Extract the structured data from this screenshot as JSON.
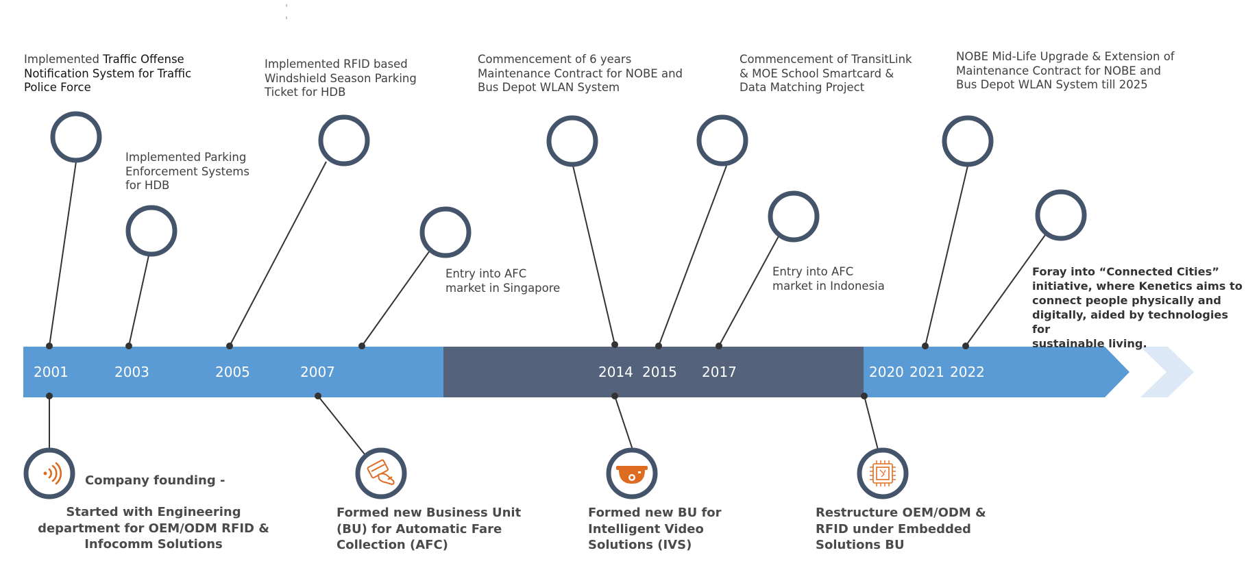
{
  "years": [
    "2001",
    "2003",
    "2005",
    "2007",
    "2014",
    "2015",
    "2017",
    "2020",
    "2021",
    "2022"
  ],
  "colors": {
    "band_light": "#5b9bd5",
    "band_dark": "#54627b",
    "circle_stroke": "#44546a",
    "ghost_chevron": "#dce8f5",
    "icon_orange": "#dd6b20"
  },
  "top_events": [
    {
      "prefix": "Implemented ",
      "lines": [
        "Traffic Offense",
        "Notification System for Traffic",
        "Police Force"
      ]
    },
    {
      "lines": [
        "Implemented Parking",
        "Enforcement Systems",
        "for HDB"
      ]
    },
    {
      "lines": [
        "Implemented RFID based",
        "Windshield Season Parking",
        "Ticket for HDB"
      ]
    },
    {
      "lines": [
        "Entry into AFC",
        "market in Singapore"
      ]
    },
    {
      "lines": [
        "Commencement of 6 years",
        "Maintenance Contract for NOBE and",
        "Bus Depot WLAN System"
      ]
    },
    {
      "lines": [
        "Commencement of TransitLink",
        "& MOE School Smartcard &",
        "Data Matching Project"
      ]
    },
    {
      "lines": [
        "Entry into AFC",
        "market in Indonesia"
      ]
    },
    {
      "lines": [
        "NOBE Mid-Life Upgrade & Extension of",
        "Maintenance Contract for NOBE and",
        "Bus Depot WLAN System till 2025"
      ]
    },
    {
      "lines": [
        "Foray into “Connected Cities”",
        "initiative, where Kenetics aims to",
        "connect people physically and",
        "digitally, aided by technologies for",
        "sustainable living."
      ]
    }
  ],
  "bottom_events": [
    {
      "icon": "rfid-wave-icon",
      "title": "Company founding -",
      "lines": [
        "Started with Engineering",
        "department for OEM/ODM RFID &",
        "Infocomm Solutions"
      ]
    },
    {
      "icon": "card-hand-icon",
      "lines": [
        "Formed new Business Unit",
        "(BU) for Automatic Fare",
        "Collection (AFC)"
      ]
    },
    {
      "icon": "dome-camera-icon",
      "lines": [
        "Formed new BU for",
        "Intelligent Video",
        "Solutions (IVS)"
      ]
    },
    {
      "icon": "chip-icon",
      "lines": [
        "Restructure OEM/ODM &",
        "RFID under Embedded",
        "Solutions BU"
      ]
    }
  ]
}
